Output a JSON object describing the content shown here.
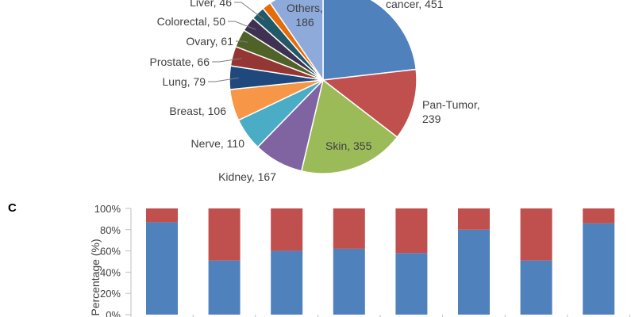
{
  "chart_data": [
    {
      "type": "pie",
      "slices": [
        {
          "label": "cancer",
          "value": 451,
          "color": "#4f81bd",
          "text": "cancer, 451"
        },
        {
          "label": "Pan-Tumor",
          "value": 239,
          "color": "#c0504d",
          "text": "Pan-Tumor,\n239"
        },
        {
          "label": "Skin",
          "value": 355,
          "color": "#9bbb59",
          "text": "Skin, 355"
        },
        {
          "label": "Kidney",
          "value": 167,
          "color": "#8064a2",
          "text": "Kidney, 167"
        },
        {
          "label": "Nerve",
          "value": 110,
          "color": "#4bacc6",
          "text": "Nerve, 110"
        },
        {
          "label": "Breast",
          "value": 106,
          "color": "#f79646",
          "text": "Breast, 106"
        },
        {
          "label": "Lung",
          "value": 79,
          "color": "#1f497d",
          "text": "Lung, 79"
        },
        {
          "label": "Prostate",
          "value": 66,
          "color": "#943634",
          "text": "Prostate, 66"
        },
        {
          "label": "Ovary",
          "value": 61,
          "color": "#4f6228",
          "text": "Ovary, 61"
        },
        {
          "label": "Colorectal",
          "value": 50,
          "color": "#3f3151",
          "text": "Colorectal, 50"
        },
        {
          "label": "Liver",
          "value": 46,
          "color": "#215968",
          "text": "Liver, 46"
        },
        {
          "label": "",
          "value": 30,
          "color": "#e46c0a",
          "text": ""
        },
        {
          "label": "Others",
          "value": 186,
          "color": "#8eaadb",
          "text": "Others,\n186"
        }
      ]
    },
    {
      "type": "bar",
      "stacked": true,
      "panel_label": "C",
      "ylabel": "Percentage (%)",
      "y_ticks": [
        "0%",
        "20%",
        "40%",
        "60%",
        "80%",
        "100%"
      ],
      "ylim": [
        0,
        100
      ],
      "categories": [
        "",
        "",
        "",
        "",
        "",
        "",
        "",
        ""
      ],
      "series": [
        {
          "color": "#4f81bd",
          "values": [
            87,
            51,
            60,
            62,
            58,
            80,
            51,
            86
          ]
        },
        {
          "color": "#c0504d",
          "values": [
            13,
            49,
            40,
            38,
            42,
            20,
            49,
            14
          ]
        }
      ]
    }
  ]
}
